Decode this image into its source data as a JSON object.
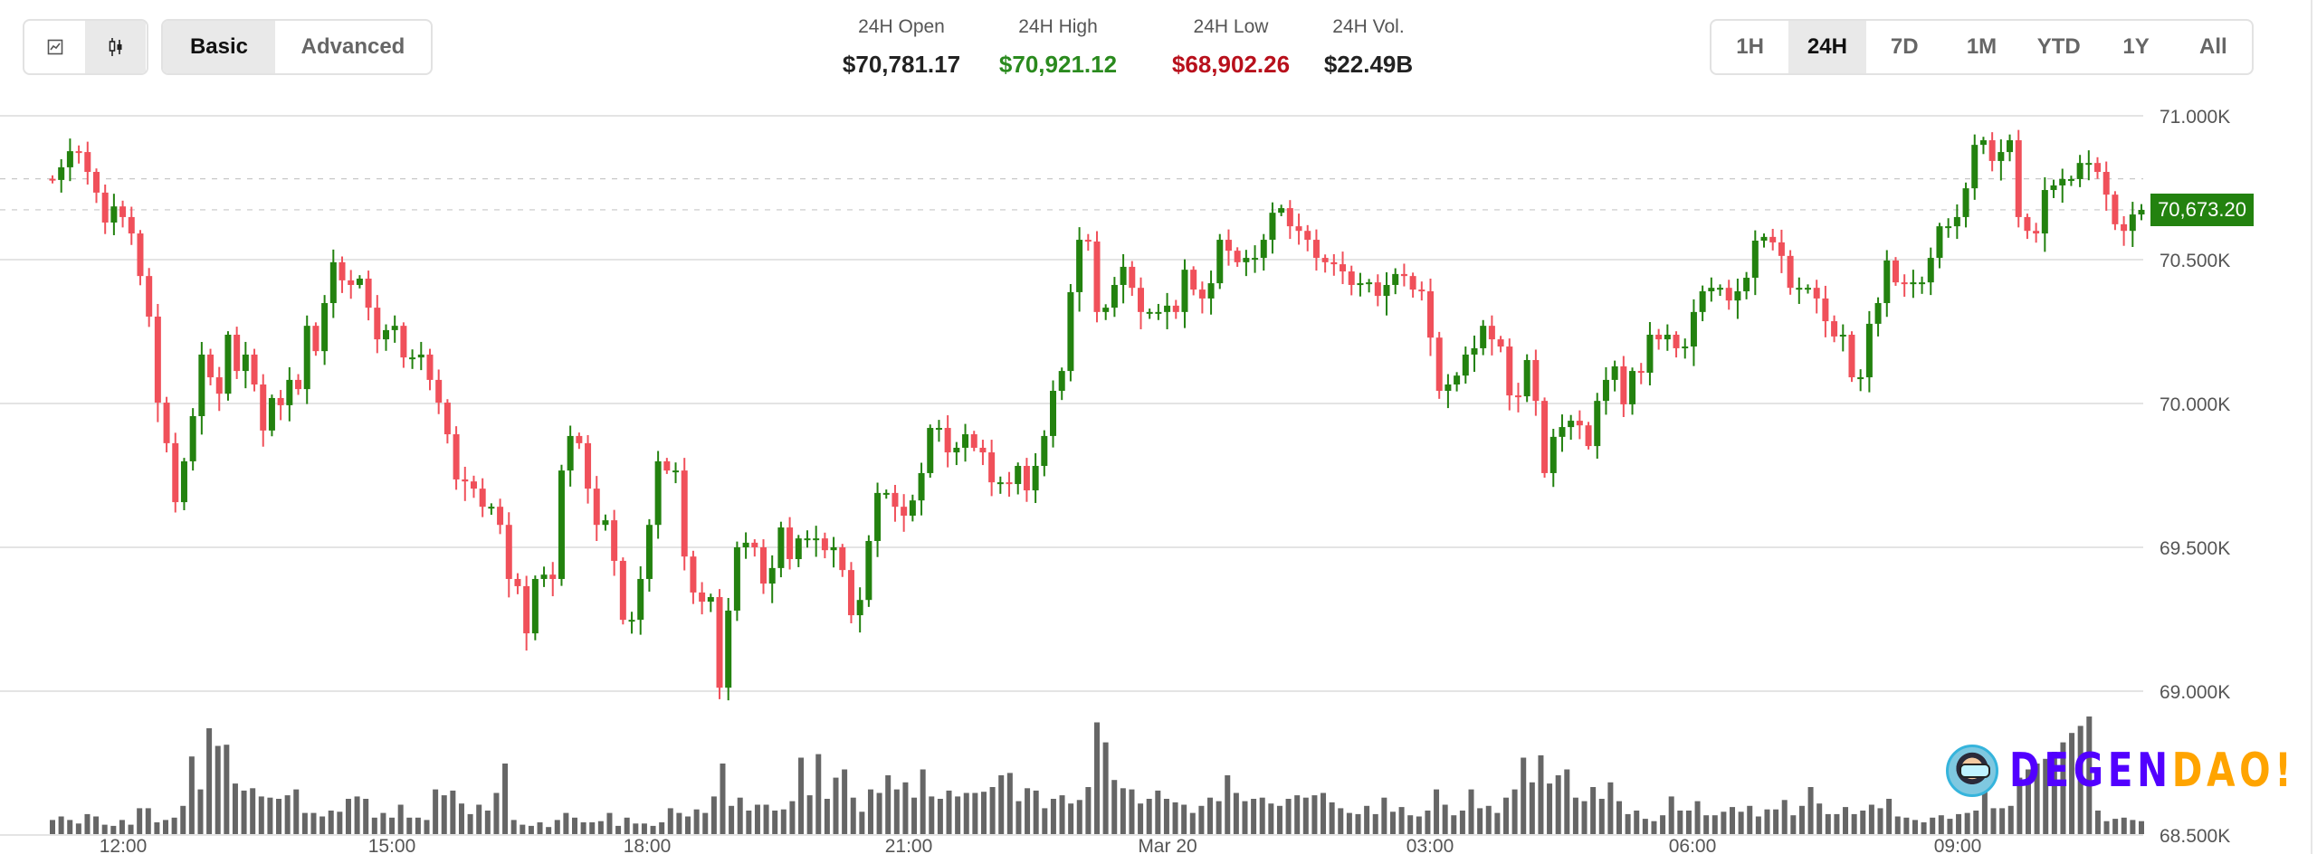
{
  "toolbar": {
    "chart_types": [
      {
        "icon": "line-chart-icon",
        "active": false
      },
      {
        "icon": "candlestick-icon",
        "active": true
      }
    ],
    "modes": [
      {
        "label": "Basic",
        "active": true
      },
      {
        "label": "Advanced",
        "active": false
      }
    ],
    "ranges": [
      {
        "label": "1H",
        "active": false
      },
      {
        "label": "24H",
        "active": true
      },
      {
        "label": "7D",
        "active": false
      },
      {
        "label": "1M",
        "active": false
      },
      {
        "label": "YTD",
        "active": false
      },
      {
        "label": "1Y",
        "active": false
      },
      {
        "label": "All",
        "active": false
      }
    ]
  },
  "stats": {
    "open": {
      "label": "24H Open",
      "value": "$70,781.17",
      "color": "#222222"
    },
    "high": {
      "label": "24H High",
      "value": "$70,921.12",
      "color": "#2a8a1e"
    },
    "low": {
      "label": "24H Low",
      "value": "$68,902.26",
      "color": "#b8101c"
    },
    "volume": {
      "label": "24H Vol.",
      "value": "$22.49B",
      "color": "#222222"
    }
  },
  "current_price": "70,673.20",
  "logo": {
    "part1": "DEGEN",
    "part2": "DAO!"
  },
  "chart_data": {
    "type": "candlestick",
    "up_color": "#23820f",
    "down_color": "#f0505a",
    "volume_color": "#666666",
    "ylim": [
      68500,
      71000
    ],
    "y_ticks": [
      "71.000K",
      "70.500K",
      "70.000K",
      "69.500K",
      "69.000K",
      "68.500K"
    ],
    "y_tick_values": [
      71000,
      70500,
      70000,
      69500,
      69000,
      68500
    ],
    "x_ticks": [
      "12:00",
      "15:00",
      "18:00",
      "21:00",
      "Mar 20",
      "03:00",
      "06:00",
      "09:00"
    ],
    "reference_lines": [
      70781.17,
      70673.2
    ],
    "first_open": 70781,
    "closes": [
      70777,
      70821,
      70877,
      70874,
      70805,
      70733,
      70629,
      70685,
      70648,
      70591,
      70443,
      70302,
      70003,
      69862,
      69657,
      69799,
      69956,
      70170,
      70091,
      70034,
      70239,
      70113,
      70170,
      70066,
      69906,
      70019,
      69994,
      70082,
      70050,
      70270,
      70182,
      70349,
      70491,
      70428,
      70412,
      70434,
      70333,
      70223,
      70255,
      70270,
      70160,
      70160,
      70170,
      70082,
      70003,
      69893,
      69736,
      69729,
      69704,
      69641,
      69641,
      69578,
      69390,
      69365,
      69201,
      69390,
      69405,
      69390,
      69767,
      69887,
      69862,
      69704,
      69578,
      69594,
      69453,
      69248,
      69248,
      69390,
      69578,
      69799,
      69767,
      69767,
      69468,
      69343,
      69311,
      69327,
      69012,
      69280,
      69500,
      69516,
      69500,
      69374,
      69428,
      69569,
      69459,
      69531,
      69531,
      69531,
      69490,
      69500,
      69421,
      69264,
      69317,
      69522,
      69689,
      69689,
      69641,
      69610,
      69663,
      69758,
      69915,
      69915,
      69830,
      69846,
      69893,
      69846,
      69830,
      69726,
      69726,
      69720,
      69783,
      69698,
      69783,
      69887,
      70044,
      70113,
      70387,
      70569,
      70563,
      70318,
      70333,
      70412,
      70475,
      70402,
      70318,
      70318,
      70318,
      70340,
      70318,
      70465,
      70396,
      70365,
      70418,
      70569,
      70531,
      70491,
      70506,
      70506,
      70569,
      70663,
      70679,
      70616,
      70600,
      70569,
      70506,
      70491,
      70484,
      70459,
      70412,
      70418,
      70421,
      70374,
      70412,
      70450,
      70443,
      70396,
      70390,
      70229,
      70044,
      70066,
      70097,
      70170,
      70192,
      70270,
      70223,
      70198,
      70028,
      70025,
      70151,
      70009,
      69758,
      69884,
      69918,
      69940,
      69924,
      69852,
      70009,
      70082,
      70129,
      69997,
      70113,
      70107,
      70239,
      70223,
      70239,
      70192,
      70198,
      70318,
      70390,
      70402,
      70402,
      70358,
      70390,
      70437,
      70566,
      70579,
      70560,
      70513,
      70402,
      70402,
      70402,
      70365,
      70286,
      70233,
      70239,
      70091,
      70091,
      70277,
      70349,
      70497,
      70421,
      70415,
      70421,
      70421,
      70506,
      70616,
      70616,
      70648,
      70748,
      70899,
      70915,
      70843,
      70874,
      70915,
      70648,
      70600,
      70591,
      70742,
      70758,
      70780,
      70780,
      70836,
      70836,
      70805,
      70726,
      70623,
      70600,
      70657,
      70673
    ],
    "volume": [
      12,
      15,
      12,
      9,
      17,
      15,
      8,
      7,
      12,
      8,
      22,
      22,
      10,
      12,
      14,
      24,
      66,
      38,
      90,
      75,
      76,
      43,
      37,
      39,
      32,
      31,
      30,
      33,
      38,
      18,
      18,
      15,
      20,
      19,
      30,
      32,
      30,
      14,
      18,
      14,
      25,
      14,
      14,
      12,
      38,
      33,
      37,
      26,
      17,
      25,
      20,
      35,
      60,
      12,
      8,
      7,
      10,
      6,
      12,
      18,
      14,
      10,
      10,
      11,
      18,
      7,
      14,
      9,
      9,
      7,
      10,
      22,
      18,
      15,
      21,
      18,
      32,
      60,
      24,
      31,
      20,
      25,
      25,
      20,
      21,
      28,
      65,
      33,
      68,
      30,
      48,
      55,
      31,
      19,
      38,
      35,
      50,
      38,
      44,
      31,
      55,
      32,
      30,
      37,
      32,
      35,
      35,
      36,
      40,
      50,
      52,
      28,
      39,
      37,
      22,
      30,
      33,
      26,
      29,
      40,
      95,
      78,
      46,
      39,
      38,
      26,
      30,
      37,
      30,
      27,
      25,
      18,
      24,
      31,
      28,
      50,
      35,
      28,
      30,
      31,
      26,
      24,
      30,
      33,
      31,
      33,
      35,
      27,
      22,
      18,
      17,
      24,
      17,
      31,
      19,
      23,
      16,
      15,
      20,
      38,
      25,
      16,
      20,
      38,
      22,
      24,
      18,
      31,
      38,
      65,
      44,
      67,
      43,
      50,
      55,
      31,
      28,
      40,
      30,
      44,
      28,
      17,
      20,
      13,
      11,
      16,
      32,
      20,
      20,
      28,
      16,
      16,
      19,
      23,
      19,
      24,
      15,
      21,
      21,
      29,
      16,
      24,
      40,
      26,
      17,
      17,
      23,
      17,
      20,
      25,
      22,
      30,
      15,
      14,
      12,
      10,
      14,
      16,
      13,
      17,
      18,
      20,
      38,
      22,
      22,
      24,
      48,
      55,
      60,
      64,
      70,
      78,
      86,
      92,
      100,
      20,
      11,
      13,
      14,
      12,
      11
    ]
  }
}
